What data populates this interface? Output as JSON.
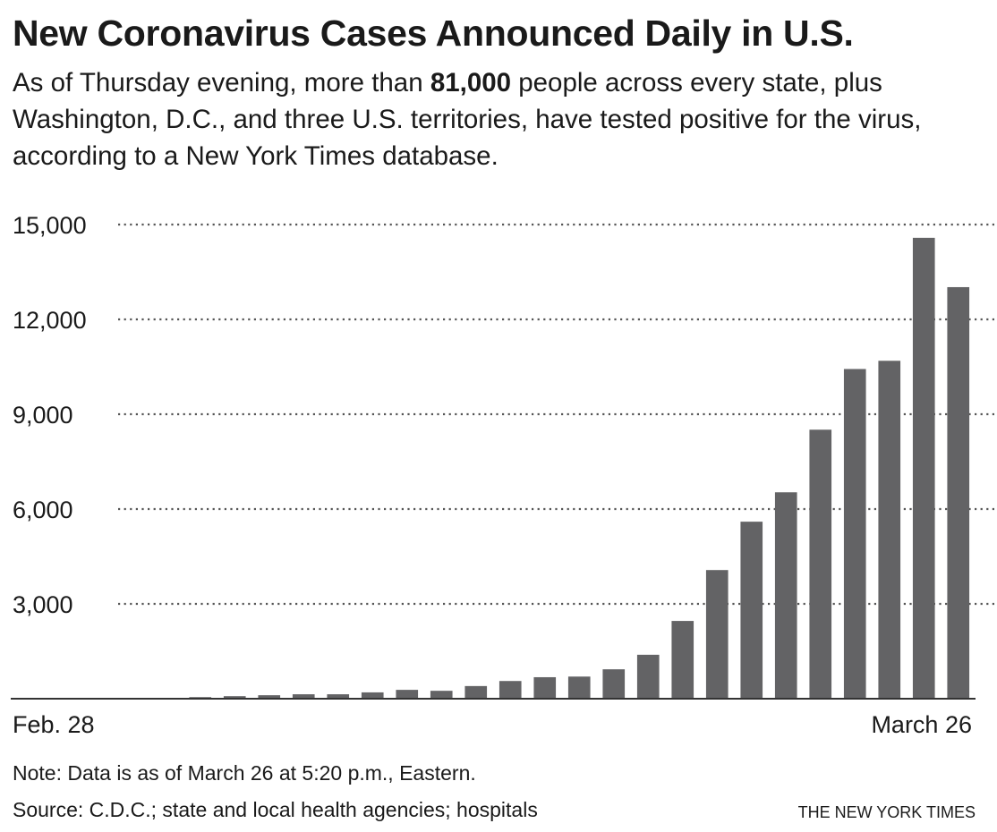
{
  "chart_data": {
    "type": "bar",
    "title": "New Coronavirus Cases Announced Daily in U.S.",
    "subtitle": [
      "As of Thursday evening, more than ",
      "81,000",
      " people across every state, plus Washington, D.C., and three U.S. territories, have tested positive for the virus, according to a New York Times database."
    ],
    "categories": [
      "Feb. 28",
      null,
      null,
      null,
      null,
      null,
      null,
      null,
      null,
      null,
      null,
      null,
      null,
      null,
      null,
      null,
      null,
      null,
      null,
      null,
      null,
      null,
      null,
      null,
      null,
      null,
      null,
      "March 26"
    ],
    "values": [
      0,
      0,
      0,
      0,
      0,
      50,
      80,
      110,
      140,
      140,
      200,
      280,
      250,
      400,
      560,
      680,
      700,
      930,
      1390,
      2460,
      4070,
      5600,
      6530,
      8510,
      10430,
      10690,
      14580,
      13020
    ],
    "color": "#636365",
    "ylim": [
      0,
      15000
    ],
    "yticks": [
      {
        "value": 3000,
        "label": "3,000"
      },
      {
        "value": 6000,
        "label": "6,000"
      },
      {
        "value": 9000,
        "label": "9,000"
      },
      {
        "value": 12000,
        "label": "12,000"
      },
      {
        "value": 15000,
        "label": "15,000"
      }
    ],
    "grid": true,
    "note": "Note: Data is as of March 26 at 5:20 p.m., Eastern.",
    "source": "Source: C.D.C.; state and local health agencies; hospitals",
    "credit": "THE NEW YORK TIMES"
  }
}
